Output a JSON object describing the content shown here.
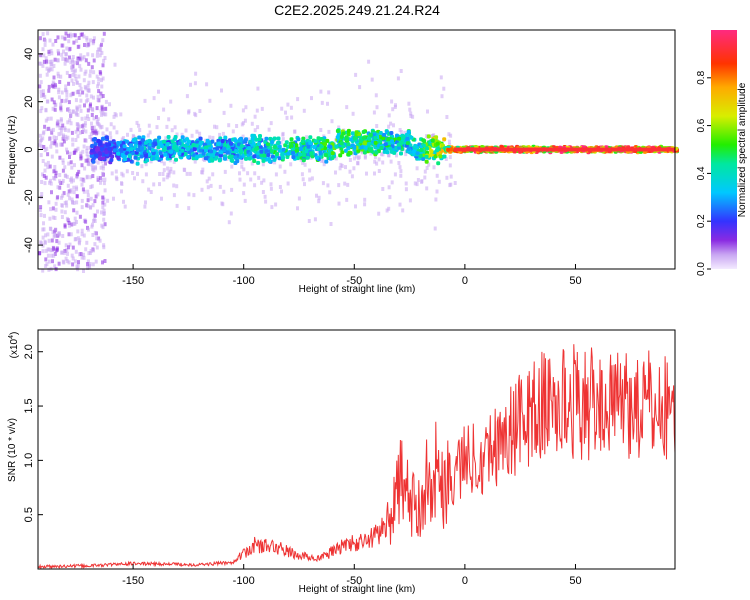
{
  "title": "C2E2.2025.249.21.24.R24",
  "chart_data": [
    {
      "type": "heatmap",
      "xlabel": "Height of straight line (km)",
      "ylabel": "Frequency (Hz)",
      "xlim": [
        -193,
        95
      ],
      "ylim": [
        -50,
        50
      ],
      "xticks": [
        -150,
        -100,
        -50,
        0,
        50
      ],
      "xtick_labels": [
        "-150",
        "-100",
        "-50",
        "0",
        "50"
      ],
      "yticks": [
        -40,
        -20,
        0,
        20,
        40
      ],
      "ytick_labels": [
        "-40",
        "-20",
        "0",
        "20",
        "40"
      ],
      "colorbar": {
        "label": "Normalized spectral amplitude",
        "range": [
          0,
          1
        ],
        "ticks": [
          0.0,
          0.2,
          0.4,
          0.6,
          0.8
        ],
        "tick_labels": [
          "0.0",
          "0.2",
          "0.4",
          "0.6",
          "0.8"
        ]
      },
      "band_amplitude": [
        {
          "x": -193,
          "amp": 0.18
        },
        {
          "x": -165,
          "amp": 0.25
        },
        {
          "x": -150,
          "amp": 0.38
        },
        {
          "x": -100,
          "amp": 0.42
        },
        {
          "x": -75,
          "amp": 0.5
        },
        {
          "x": -50,
          "amp": 0.55
        },
        {
          "x": -25,
          "amp": 0.45
        },
        {
          "x": -10,
          "amp": 0.75
        },
        {
          "x": 0,
          "amp": 0.9
        },
        {
          "x": 95,
          "amp": 1.0
        }
      ]
    },
    {
      "type": "line",
      "xlabel": "Height of straight line (km)",
      "ylabel": "SNR (10 * v/v)",
      "y_scale_label_main": "(x10",
      "y_scale_label_exp": "4",
      "y_scale_label_end": ")",
      "xlim": [
        -193,
        95
      ],
      "ylim": [
        0,
        2.2
      ],
      "xticks": [
        -150,
        -100,
        -50,
        0,
        50
      ],
      "xtick_labels": [
        "-150",
        "-100",
        "-50",
        "0",
        "50"
      ],
      "yticks": [
        0.5,
        1.0,
        1.5,
        2.0
      ],
      "ytick_labels": [
        "0.5",
        "1.0",
        "1.5",
        "2.0"
      ],
      "series_color": "#ee3333",
      "x": [
        -193,
        -170,
        -150,
        -120,
        -105,
        -95,
        -85,
        -75,
        -65,
        -55,
        -45,
        -38,
        -32,
        -28,
        -25,
        -20,
        -15,
        -10,
        -5,
        0,
        10,
        20,
        25,
        35,
        50,
        60,
        70,
        80,
        95
      ],
      "y": [
        0.02,
        0.03,
        0.05,
        0.04,
        0.06,
        0.22,
        0.2,
        0.12,
        0.1,
        0.22,
        0.25,
        0.35,
        0.55,
        0.9,
        0.55,
        0.65,
        0.95,
        0.8,
        0.9,
        1.0,
        1.08,
        1.25,
        1.35,
        1.5,
        1.55,
        1.5,
        1.55,
        1.5,
        1.48
      ]
    }
  ]
}
